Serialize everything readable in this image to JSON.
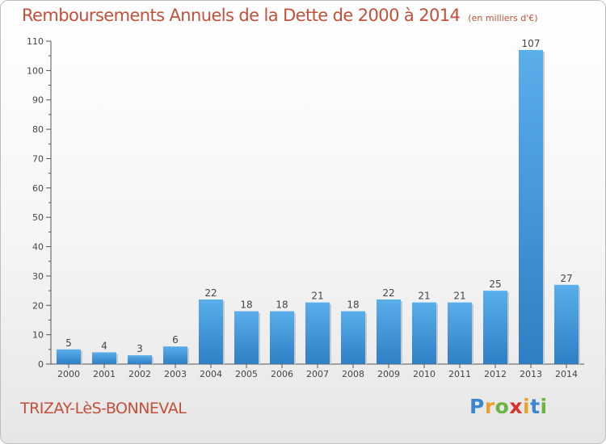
{
  "chart_data": {
    "type": "bar",
    "title": "Remboursements Annuels de la Dette de 2000 à 2014",
    "subtitle": "(en milliers d'€)",
    "categories": [
      "2000",
      "2001",
      "2002",
      "2003",
      "2004",
      "2005",
      "2006",
      "2007",
      "2008",
      "2009",
      "2010",
      "2011",
      "2012",
      "2013",
      "2014"
    ],
    "values": [
      5,
      4,
      3,
      6,
      22,
      18,
      18,
      21,
      18,
      22,
      21,
      21,
      25,
      107,
      27
    ],
    "yticks": [
      0,
      10,
      20,
      30,
      40,
      50,
      60,
      70,
      80,
      90,
      100,
      110
    ],
    "ylim": [
      0,
      110
    ],
    "xlabel": "",
    "ylabel": "",
    "grid": false,
    "bar_color": "#3d8fd6"
  },
  "commune": "TRIZAY-LèS-BONNEVAL",
  "logo": {
    "letters": [
      "P",
      "r",
      "o",
      "x",
      "i",
      "t",
      "i"
    ],
    "colors": [
      "#3a87d0",
      "#e8a22b",
      "#6cb33f",
      "#d9342b",
      "#e8a22b",
      "#3a87d0",
      "#6cb33f"
    ]
  },
  "colors": {
    "title": "#c1503a",
    "axis": "#555555"
  }
}
